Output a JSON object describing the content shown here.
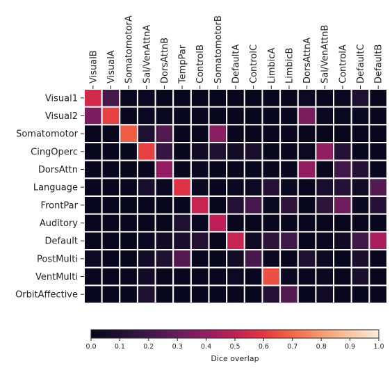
{
  "chart_data": {
    "type": "heatmap",
    "x_categories": [
      "VisualB",
      "VisualA",
      "SomatomotorA",
      "Sal/VenAttnA",
      "DorsAttnB",
      "TempPar",
      "ControlB",
      "SomatomotorB",
      "DefaultA",
      "ControlC",
      "LimbicA",
      "LimbicB",
      "DorsAttnA",
      "Sal/VenAttnB",
      "ControlA",
      "DefaultC",
      "DefaultB"
    ],
    "y_categories": [
      "Visual1",
      "Visual2",
      "Somatomotor",
      "CingOperc",
      "DorsAttn",
      "Language",
      "FrontPar",
      "Auditory",
      "Default",
      "PostMulti",
      "VentMulti",
      "OrbitAffective"
    ],
    "values": [
      [
        0.55,
        0.22,
        0.03,
        0.03,
        0.02,
        0.02,
        0.02,
        0.02,
        0.02,
        0.02,
        0.02,
        0.02,
        0.04,
        0.02,
        0.03,
        0.1,
        0.02
      ],
      [
        0.35,
        0.62,
        0.02,
        0.03,
        0.03,
        0.02,
        0.02,
        0.02,
        0.02,
        0.02,
        0.02,
        0.02,
        0.35,
        0.03,
        0.03,
        0.03,
        0.02
      ],
      [
        0.02,
        0.02,
        0.68,
        0.1,
        0.25,
        0.02,
        0.02,
        0.38,
        0.02,
        0.02,
        0.02,
        0.02,
        0.02,
        0.02,
        0.02,
        0.02,
        0.02
      ],
      [
        0.02,
        0.02,
        0.02,
        0.62,
        0.18,
        0.02,
        0.05,
        0.1,
        0.06,
        0.08,
        0.02,
        0.02,
        0.04,
        0.4,
        0.12,
        0.02,
        0.02
      ],
      [
        0.02,
        0.02,
        0.02,
        0.02,
        0.4,
        0.02,
        0.03,
        0.02,
        0.02,
        0.02,
        0.02,
        0.02,
        0.4,
        0.02,
        0.2,
        0.12,
        0.02
      ],
      [
        0.02,
        0.02,
        0.02,
        0.08,
        0.03,
        0.58,
        0.03,
        0.02,
        0.03,
        0.04,
        0.12,
        0.03,
        0.02,
        0.08,
        0.12,
        0.05,
        0.25
      ],
      [
        0.02,
        0.02,
        0.02,
        0.02,
        0.02,
        0.02,
        0.52,
        0.02,
        0.12,
        0.22,
        0.03,
        0.15,
        0.02,
        0.15,
        0.32,
        0.03,
        0.12
      ],
      [
        0.02,
        0.02,
        0.02,
        0.02,
        0.02,
        0.1,
        0.03,
        0.5,
        0.02,
        0.02,
        0.02,
        0.02,
        0.02,
        0.02,
        0.02,
        0.02,
        0.02
      ],
      [
        0.02,
        0.02,
        0.02,
        0.03,
        0.05,
        0.08,
        0.12,
        0.02,
        0.52,
        0.05,
        0.15,
        0.2,
        0.02,
        0.03,
        0.05,
        0.2,
        0.45
      ],
      [
        0.04,
        0.02,
        0.02,
        0.06,
        0.1,
        0.25,
        0.02,
        0.02,
        0.06,
        0.22,
        0.03,
        0.02,
        0.1,
        0.04,
        0.02,
        0.08,
        0.02
      ],
      [
        0.02,
        0.02,
        0.02,
        0.05,
        0.02,
        0.02,
        0.02,
        0.02,
        0.04,
        0.02,
        0.65,
        0.03,
        0.02,
        0.03,
        0.02,
        0.08,
        0.02
      ],
      [
        0.02,
        0.02,
        0.02,
        0.1,
        0.02,
        0.02,
        0.02,
        0.02,
        0.02,
        0.02,
        0.12,
        0.25,
        0.02,
        0.05,
        0.02,
        0.02,
        0.02
      ]
    ],
    "colorbar": {
      "label": "Dice overlap",
      "range": [
        0,
        1
      ],
      "ticks": [
        "0.0",
        "0.1",
        "0.2",
        "0.3",
        "0.4",
        "0.5",
        "0.6",
        "0.7",
        "0.8",
        "0.9",
        "1.0"
      ],
      "colormap": "rocket",
      "orientation": "horizontal"
    },
    "gridline_color": "#ffffff"
  }
}
